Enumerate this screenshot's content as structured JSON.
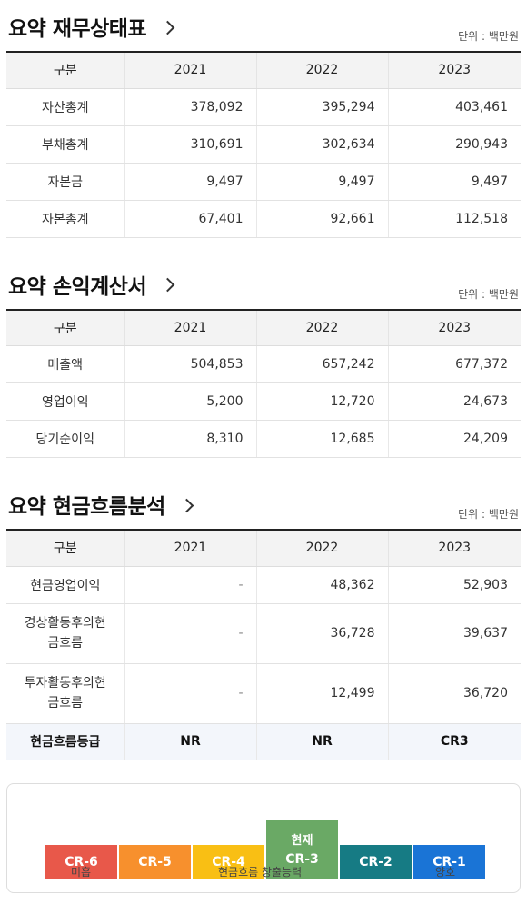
{
  "balance": {
    "title": "요약 재무상태표",
    "unit": "단위 : 백만원",
    "headers": [
      "구분",
      "2021",
      "2022",
      "2023"
    ],
    "rows": [
      {
        "label": "자산총계",
        "values": [
          "378,092",
          "395,294",
          "403,461"
        ]
      },
      {
        "label": "부채총계",
        "values": [
          "310,691",
          "302,634",
          "290,943"
        ]
      },
      {
        "label": "자본금",
        "values": [
          "9,497",
          "9,497",
          "9,497"
        ]
      },
      {
        "label": "자본총계",
        "values": [
          "67,401",
          "92,661",
          "112,518"
        ]
      }
    ]
  },
  "income": {
    "title": "요약 손익계산서",
    "unit": "단위 : 백만원",
    "headers": [
      "구분",
      "2021",
      "2022",
      "2023"
    ],
    "rows": [
      {
        "label": "매출액",
        "values": [
          "504,853",
          "657,242",
          "677,372"
        ]
      },
      {
        "label": "영업이익",
        "values": [
          "5,200",
          "12,720",
          "24,673"
        ]
      },
      {
        "label": "당기순이익",
        "values": [
          "8,310",
          "12,685",
          "24,209"
        ]
      }
    ]
  },
  "cashflow": {
    "title": "요약 현금흐름분석",
    "unit": "단위 : 백만원",
    "headers": [
      "구분",
      "2021",
      "2022",
      "2023"
    ],
    "rows": [
      {
        "label_lines": [
          "현금영업이익"
        ],
        "values": [
          "-",
          "48,362",
          "52,903"
        ]
      },
      {
        "label_lines": [
          "경상활동후의현",
          "금흐름"
        ],
        "values": [
          "-",
          "36,728",
          "39,637"
        ]
      },
      {
        "label_lines": [
          "투자활동후의현",
          "금흐름"
        ],
        "values": [
          "-",
          "12,499",
          "36,720"
        ]
      }
    ],
    "grade_row": {
      "label": "현금흐름등급",
      "values": [
        "NR",
        "NR",
        "CR3"
      ]
    }
  },
  "grade_scale": {
    "current_label": "현재",
    "grades": [
      {
        "code": "CR-6",
        "color": "#e8584a"
      },
      {
        "code": "CR-5",
        "color": "#f7902d"
      },
      {
        "code": "CR-4",
        "color": "#f9bf14"
      },
      {
        "code": "CR-3",
        "color": "#6aa965",
        "current": true
      },
      {
        "code": "CR-2",
        "color": "#167b84"
      },
      {
        "code": "CR-1",
        "color": "#1a74d6"
      }
    ],
    "label_left": "미흡",
    "label_center": "현금흐름 창출능력",
    "label_right": "양호"
  }
}
